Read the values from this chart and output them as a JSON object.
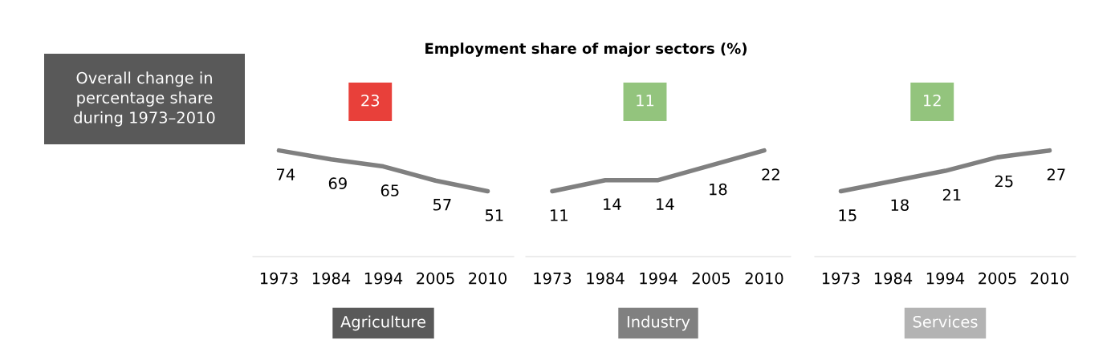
{
  "chart_data": [
    {
      "type": "other",
      "annotations": [
        "Overall change in\npercentage share\nduring 1973–2010"
      ]
    },
    {
      "type": "line",
      "categories": [
        "1973",
        "1984",
        "1994",
        "2005",
        "2010"
      ],
      "values": [
        74,
        69,
        65,
        57,
        51
      ],
      "color": "#808080",
      "data_labels": true,
      "annotations": [
        "23",
        "Agriculture"
      ]
    },
    {
      "type": "line",
      "title": "Employment share of major sectors (%)",
      "categories": [
        "1973",
        "1984",
        "1994",
        "2005",
        "2010"
      ],
      "values": [
        11,
        14,
        14,
        18,
        22
      ],
      "color": "#808080",
      "data_labels": true,
      "annotations": [
        "11",
        "Industry"
      ]
    },
    {
      "type": "line",
      "categories": [
        "1973",
        "1984",
        "1994",
        "2005",
        "2010"
      ],
      "values": [
        15,
        18,
        21,
        25,
        27
      ],
      "color": "#808080",
      "data_labels": true,
      "annotations": [
        "12",
        "Services"
      ]
    }
  ]
}
